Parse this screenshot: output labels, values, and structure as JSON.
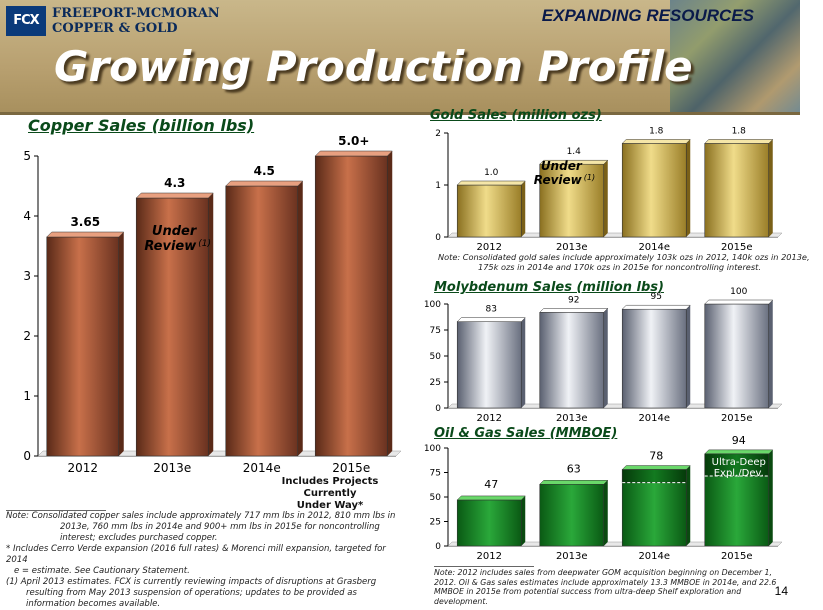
{
  "header": {
    "logo_mark": "FCX",
    "logo_line1": "FREEPORT-MCMORAN",
    "logo_line2": "COPPER & GOLD",
    "tagline": "EXPANDING RESOURCES",
    "title": "Growing Production Profile"
  },
  "colors": {
    "copper": "#a85a3a",
    "gold": "#c9a93a",
    "moly": "#a8adb8",
    "oil": "#1a8a2a",
    "header": "#b8a070",
    "title_green": "#0a4a1a"
  },
  "chart_data": [
    {
      "type": "bar",
      "id": "copper",
      "title": "Copper Sales (billion lbs)",
      "categories": [
        "2012",
        "2013e",
        "2014e",
        "2015e"
      ],
      "values": [
        3.65,
        4.3,
        4.5,
        5.0
      ],
      "value_labels": [
        "3.65",
        "4.3",
        "4.5",
        "5.0+"
      ],
      "ylim": [
        0,
        5
      ],
      "yticks": [
        "0",
        "1",
        "2",
        "3",
        "4",
        "5"
      ],
      "annotation": {
        "text_line1": "Under",
        "text_line2": "Review",
        "superscript": "(1)",
        "category": "2013e"
      },
      "footnote_lines": [
        "Includes Projects",
        "Currently",
        "Under Way*"
      ]
    },
    {
      "type": "bar",
      "id": "gold",
      "title": "Gold Sales (million ozs)",
      "categories": [
        "2012",
        "2013e",
        "2014e",
        "2015e"
      ],
      "values": [
        1.0,
        1.4,
        1.8,
        1.8
      ],
      "value_labels": [
        "1.0",
        "1.4",
        "1.8",
        "1.8"
      ],
      "ylim": [
        0,
        2
      ],
      "yticks": [
        "0",
        "1",
        "2"
      ],
      "annotation": {
        "text_line1": "Under",
        "text_line2": "Review",
        "superscript": "(1)",
        "category": "2013e"
      }
    },
    {
      "type": "bar",
      "id": "moly",
      "title": "Molybdenum Sales (million lbs)",
      "categories": [
        "2012",
        "2013e",
        "2014e",
        "2015e"
      ],
      "values": [
        83,
        92,
        95,
        100
      ],
      "value_labels": [
        "83",
        "92",
        "95",
        "100"
      ],
      "ylim": [
        0,
        100
      ],
      "yticks": [
        "0",
        "25",
        "50",
        "75",
        "100"
      ]
    },
    {
      "type": "bar",
      "id": "oil",
      "title": "Oil & Gas Sales (MMBOE)",
      "categories": [
        "2012",
        "2013e",
        "2014e",
        "2015e"
      ],
      "values": [
        47,
        63,
        78,
        94
      ],
      "value_labels": [
        "47",
        "63",
        "78",
        "94"
      ],
      "ylim": [
        0,
        100
      ],
      "yticks": [
        "0",
        "25",
        "50",
        "75",
        "100"
      ],
      "segments": {
        "ultra_deep_2014e": 13.3,
        "ultra_deep_2015e": 22.6
      },
      "segment_label_line1": "Ultra-Deep",
      "segment_label_line2": "Expl./Dev."
    }
  ],
  "notes": {
    "copper_note_1": "Note:  Consolidated copper sales include approximately 717 mm lbs in 2012, 810 mm lbs in 2013e, 760 mm lbs in 2014e and 900+ mm lbs in 2015e for noncontrolling interest; excludes purchased copper.",
    "copper_note_2": "* Includes Cerro Verde expansion (2016 full rates) & Morenci mill expansion, targeted for 2014",
    "copper_note_3": "  e = estimate. See Cautionary Statement.",
    "copper_note_4": "(1) April 2013 estimates. FCX is currently reviewing impacts of disruptions at Grasberg resulting from May 2013 suspension of operations; updates to be provided as information becomes available.",
    "gold_note": "Note:  Consolidated gold sales include approximately 103k ozs in 2012, 140k ozs in 2013e, 175k ozs in 2014e and 170k ozs in 2015e for noncontrolling interest.",
    "oil_note": "Note:  2012 includes sales from deepwater GOM acquisition beginning on December 1, 2012. Oil & Gas sales estimates include approximately 13.3 MMBOE in 2014e, and 22.6 MMBOE in 2015e from potential success from ultra-deep Shelf exploration and development."
  },
  "page_number": "14"
}
